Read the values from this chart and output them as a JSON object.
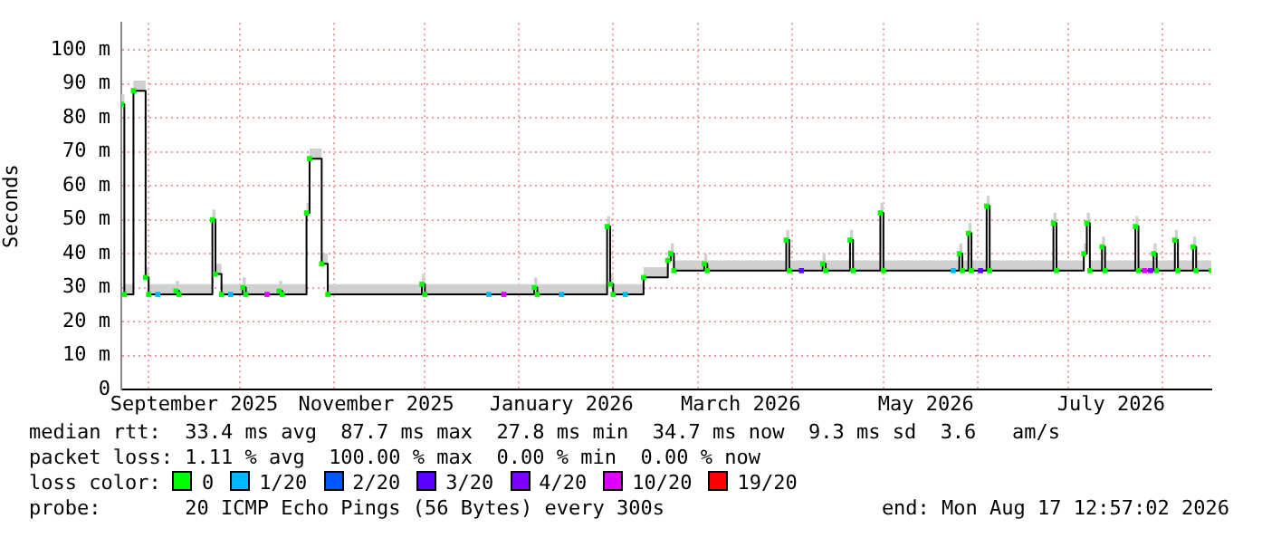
{
  "chart_data": {
    "type": "step",
    "ylabel": "Seconds",
    "legend_title": "loss color:",
    "legend": "bottom",
    "grid": true,
    "xlim": [
      "2025-08-23",
      "2026-08-17"
    ],
    "xticks": [
      {
        "value": "2025-09-01",
        "label": null
      },
      {
        "value": "2025-09-16",
        "label": "September 2025"
      },
      {
        "value": "2025-10-01",
        "label": null
      },
      {
        "value": "2025-11-01",
        "label": null
      },
      {
        "value": "2025-11-15",
        "label": "November 2025"
      },
      {
        "value": "2025-12-01",
        "label": null
      },
      {
        "value": "2026-01-01",
        "label": null
      },
      {
        "value": "2026-01-15",
        "label": "January 2026"
      },
      {
        "value": "2026-02-01",
        "label": null
      },
      {
        "value": "2026-03-01",
        "label": null
      },
      {
        "value": "2026-03-15",
        "label": "March 2026"
      },
      {
        "value": "2026-04-01",
        "label": null
      },
      {
        "value": "2026-05-01",
        "label": null
      },
      {
        "value": "2026-05-15",
        "label": "May 2026"
      },
      {
        "value": "2026-06-01",
        "label": null
      },
      {
        "value": "2026-07-01",
        "label": null
      },
      {
        "value": "2026-07-15",
        "label": "July 2026"
      },
      {
        "value": "2026-08-01",
        "label": null
      }
    ],
    "ylim": [
      0,
      108
    ],
    "yticks": [
      0,
      {
        "value": 10,
        "label": "10 m"
      },
      {
        "value": 20,
        "label": "20 m"
      },
      {
        "value": 30,
        "label": "30 m"
      },
      {
        "value": 40,
        "label": "40 m"
      },
      {
        "value": 50,
        "label": "50 m"
      },
      {
        "value": 60,
        "label": "60 m"
      },
      {
        "value": 70,
        "label": "70 m"
      },
      {
        "value": 80,
        "label": "80 m"
      },
      {
        "value": 90,
        "label": "90 m"
      },
      {
        "value": 100,
        "label": "100 m"
      }
    ],
    "series": [
      {
        "color": "#000000",
        "x": [
          "2025-08-23",
          "2025-08-24",
          "2025-08-27",
          "2025-08-31",
          "2025-09-01",
          "2025-09-10",
          "2025-09-11",
          "2025-09-22",
          "2025-09-23",
          "2025-09-25",
          "2025-10-02",
          "2025-10-03",
          "2025-10-14",
          "2025-10-15",
          "2025-10-23",
          "2025-10-24",
          "2025-10-28",
          "2025-10-30",
          "2025-11-30",
          "2025-12-01",
          "2026-01-06",
          "2026-01-07",
          "2026-01-30",
          "2026-01-31",
          "2026-02-01",
          "2026-02-11",
          "2026-02-19",
          "2026-02-20",
          "2026-02-21",
          "2026-03-03",
          "2026-03-04",
          "2026-03-30",
          "2026-03-31",
          "2026-04-11",
          "2026-04-12",
          "2026-04-20",
          "2026-04-21",
          "2026-04-30",
          "2026-05-01",
          "2026-05-26",
          "2026-05-27",
          "2026-05-29",
          "2026-05-30",
          "2026-06-04",
          "2026-06-05",
          "2026-06-26",
          "2026-06-27",
          "2026-07-06",
          "2026-07-07",
          "2026-07-08",
          "2026-07-12",
          "2026-07-13",
          "2026-07-23",
          "2026-07-24",
          "2026-07-29",
          "2026-07-30",
          "2026-08-05",
          "2026-08-06",
          "2026-08-11",
          "2026-08-12",
          "2026-08-17"
        ],
        "values": [
          84,
          28,
          88,
          33,
          28,
          29,
          28,
          50,
          34,
          28,
          30,
          28,
          29,
          28,
          52,
          68,
          37,
          28,
          31,
          28,
          30,
          28,
          48,
          31,
          28,
          33,
          38,
          40,
          35,
          37,
          35,
          44,
          35,
          37,
          35,
          44,
          35,
          52,
          35,
          40,
          35,
          46,
          35,
          54,
          35,
          49,
          35,
          40,
          49,
          35,
          42,
          35,
          48,
          35,
          40,
          35,
          44,
          35,
          42,
          35,
          35
        ],
        "lower": [
          84,
          28,
          88,
          33,
          28,
          29,
          28,
          50,
          34,
          28,
          30,
          28,
          29,
          28,
          52,
          68,
          37,
          28,
          31,
          28,
          30,
          28,
          48,
          31,
          28,
          33,
          38,
          40,
          35,
          37,
          35,
          44,
          35,
          37,
          35,
          44,
          35,
          52,
          35,
          40,
          35,
          46,
          35,
          54,
          35,
          49,
          35,
          40,
          49,
          35,
          42,
          35,
          48,
          35,
          40,
          35,
          44,
          35,
          42,
          35,
          35
        ],
        "upper": [
          87,
          31,
          91,
          36,
          31,
          32,
          31,
          53,
          37,
          31,
          33,
          31,
          32,
          31,
          55,
          71,
          40,
          31,
          34,
          31,
          33,
          31,
          51,
          34,
          31,
          36,
          41,
          43,
          38,
          40,
          38,
          47,
          38,
          40,
          38,
          47,
          38,
          55,
          38,
          43,
          38,
          49,
          38,
          57,
          38,
          52,
          38,
          43,
          52,
          38,
          45,
          38,
          51,
          38,
          43,
          38,
          47,
          38,
          45,
          38,
          38
        ]
      },
      {
        "type": "scatter",
        "name": "0",
        "color": "#00ff00",
        "marker": "square",
        "x": [
          "2025-08-23",
          "2025-08-24",
          "2025-08-27",
          "2025-08-31",
          "2025-09-01",
          "2025-09-10",
          "2025-09-11",
          "2025-09-22",
          "2025-09-23",
          "2025-09-25",
          "2025-10-02",
          "2025-10-03",
          "2025-10-14",
          "2025-10-15",
          "2025-10-23",
          "2025-10-24",
          "2025-10-28",
          "2025-10-30",
          "2025-11-30",
          "2025-12-01",
          "2026-01-06",
          "2026-01-07",
          "2026-01-30",
          "2026-01-31",
          "2026-02-01",
          "2026-02-11",
          "2026-02-19",
          "2026-02-20",
          "2026-02-21",
          "2026-03-03",
          "2026-03-04",
          "2026-03-30",
          "2026-03-31",
          "2026-04-11",
          "2026-04-12",
          "2026-04-20",
          "2026-04-21",
          "2026-04-30",
          "2026-05-01",
          "2026-05-26",
          "2026-05-27",
          "2026-05-29",
          "2026-05-30",
          "2026-06-04",
          "2026-06-05",
          "2026-06-26",
          "2026-06-27",
          "2026-07-06",
          "2026-07-07",
          "2026-07-08",
          "2026-07-12",
          "2026-07-13",
          "2026-07-23",
          "2026-07-24",
          "2026-07-29",
          "2026-07-30",
          "2026-08-05",
          "2026-08-06",
          "2026-08-11",
          "2026-08-12",
          "2026-08-17"
        ],
        "values": [
          84,
          28,
          88,
          33,
          28,
          29,
          28,
          50,
          34,
          28,
          30,
          28,
          29,
          28,
          52,
          68,
          37,
          28,
          31,
          28,
          30,
          28,
          48,
          31,
          28,
          33,
          38,
          40,
          35,
          37,
          35,
          44,
          35,
          37,
          35,
          44,
          35,
          52,
          35,
          40,
          35,
          46,
          35,
          54,
          35,
          49,
          35,
          40,
          49,
          35,
          42,
          35,
          48,
          35,
          40,
          35,
          44,
          35,
          42,
          35,
          35
        ]
      },
      {
        "type": "scatter",
        "name": "1/20",
        "color": "#00b8ff",
        "marker": "square",
        "x": [
          "2025-09-04",
          "2025-09-28",
          "2025-12-22",
          "2026-01-15",
          "2026-02-05",
          "2026-05-24"
        ],
        "values": [
          28,
          28,
          28,
          28,
          28,
          35
        ]
      },
      {
        "type": "scatter",
        "name": "2/20",
        "color": "#0059ff"
      },
      {
        "type": "scatter",
        "name": "3/20",
        "color": "#5e00ff",
        "marker": "square",
        "x": [
          "2026-04-04",
          "2026-06-02"
        ],
        "values": [
          35,
          35
        ]
      },
      {
        "type": "scatter",
        "name": "4/20",
        "color": "#7e00ff",
        "marker": "square",
        "x": [
          "2026-07-28"
        ],
        "values": [
          35
        ]
      },
      {
        "type": "scatter",
        "name": "10/20",
        "color": "#dd00ff",
        "marker": "square",
        "x": [
          "2025-10-10",
          "2025-12-27",
          "2026-07-26"
        ],
        "values": [
          28,
          28,
          35
        ]
      },
      {
        "type": "scatter",
        "name": "19/20",
        "color": "#ff0000"
      }
    ],
    "annotations": [
      "median rtt:  33.4 ms avg  87.7 ms max  27.8 ms min  34.7 ms now  9.3 ms sd  3.6   am/s",
      "packet loss: 1.11 % avg  100.00 % max  0.00 % min  0.00 % now",
      "probe:       20 ICMP Echo Pings (56 Bytes) every 300s",
      "end: Mon Aug 17 12:57:02 2026"
    ]
  }
}
